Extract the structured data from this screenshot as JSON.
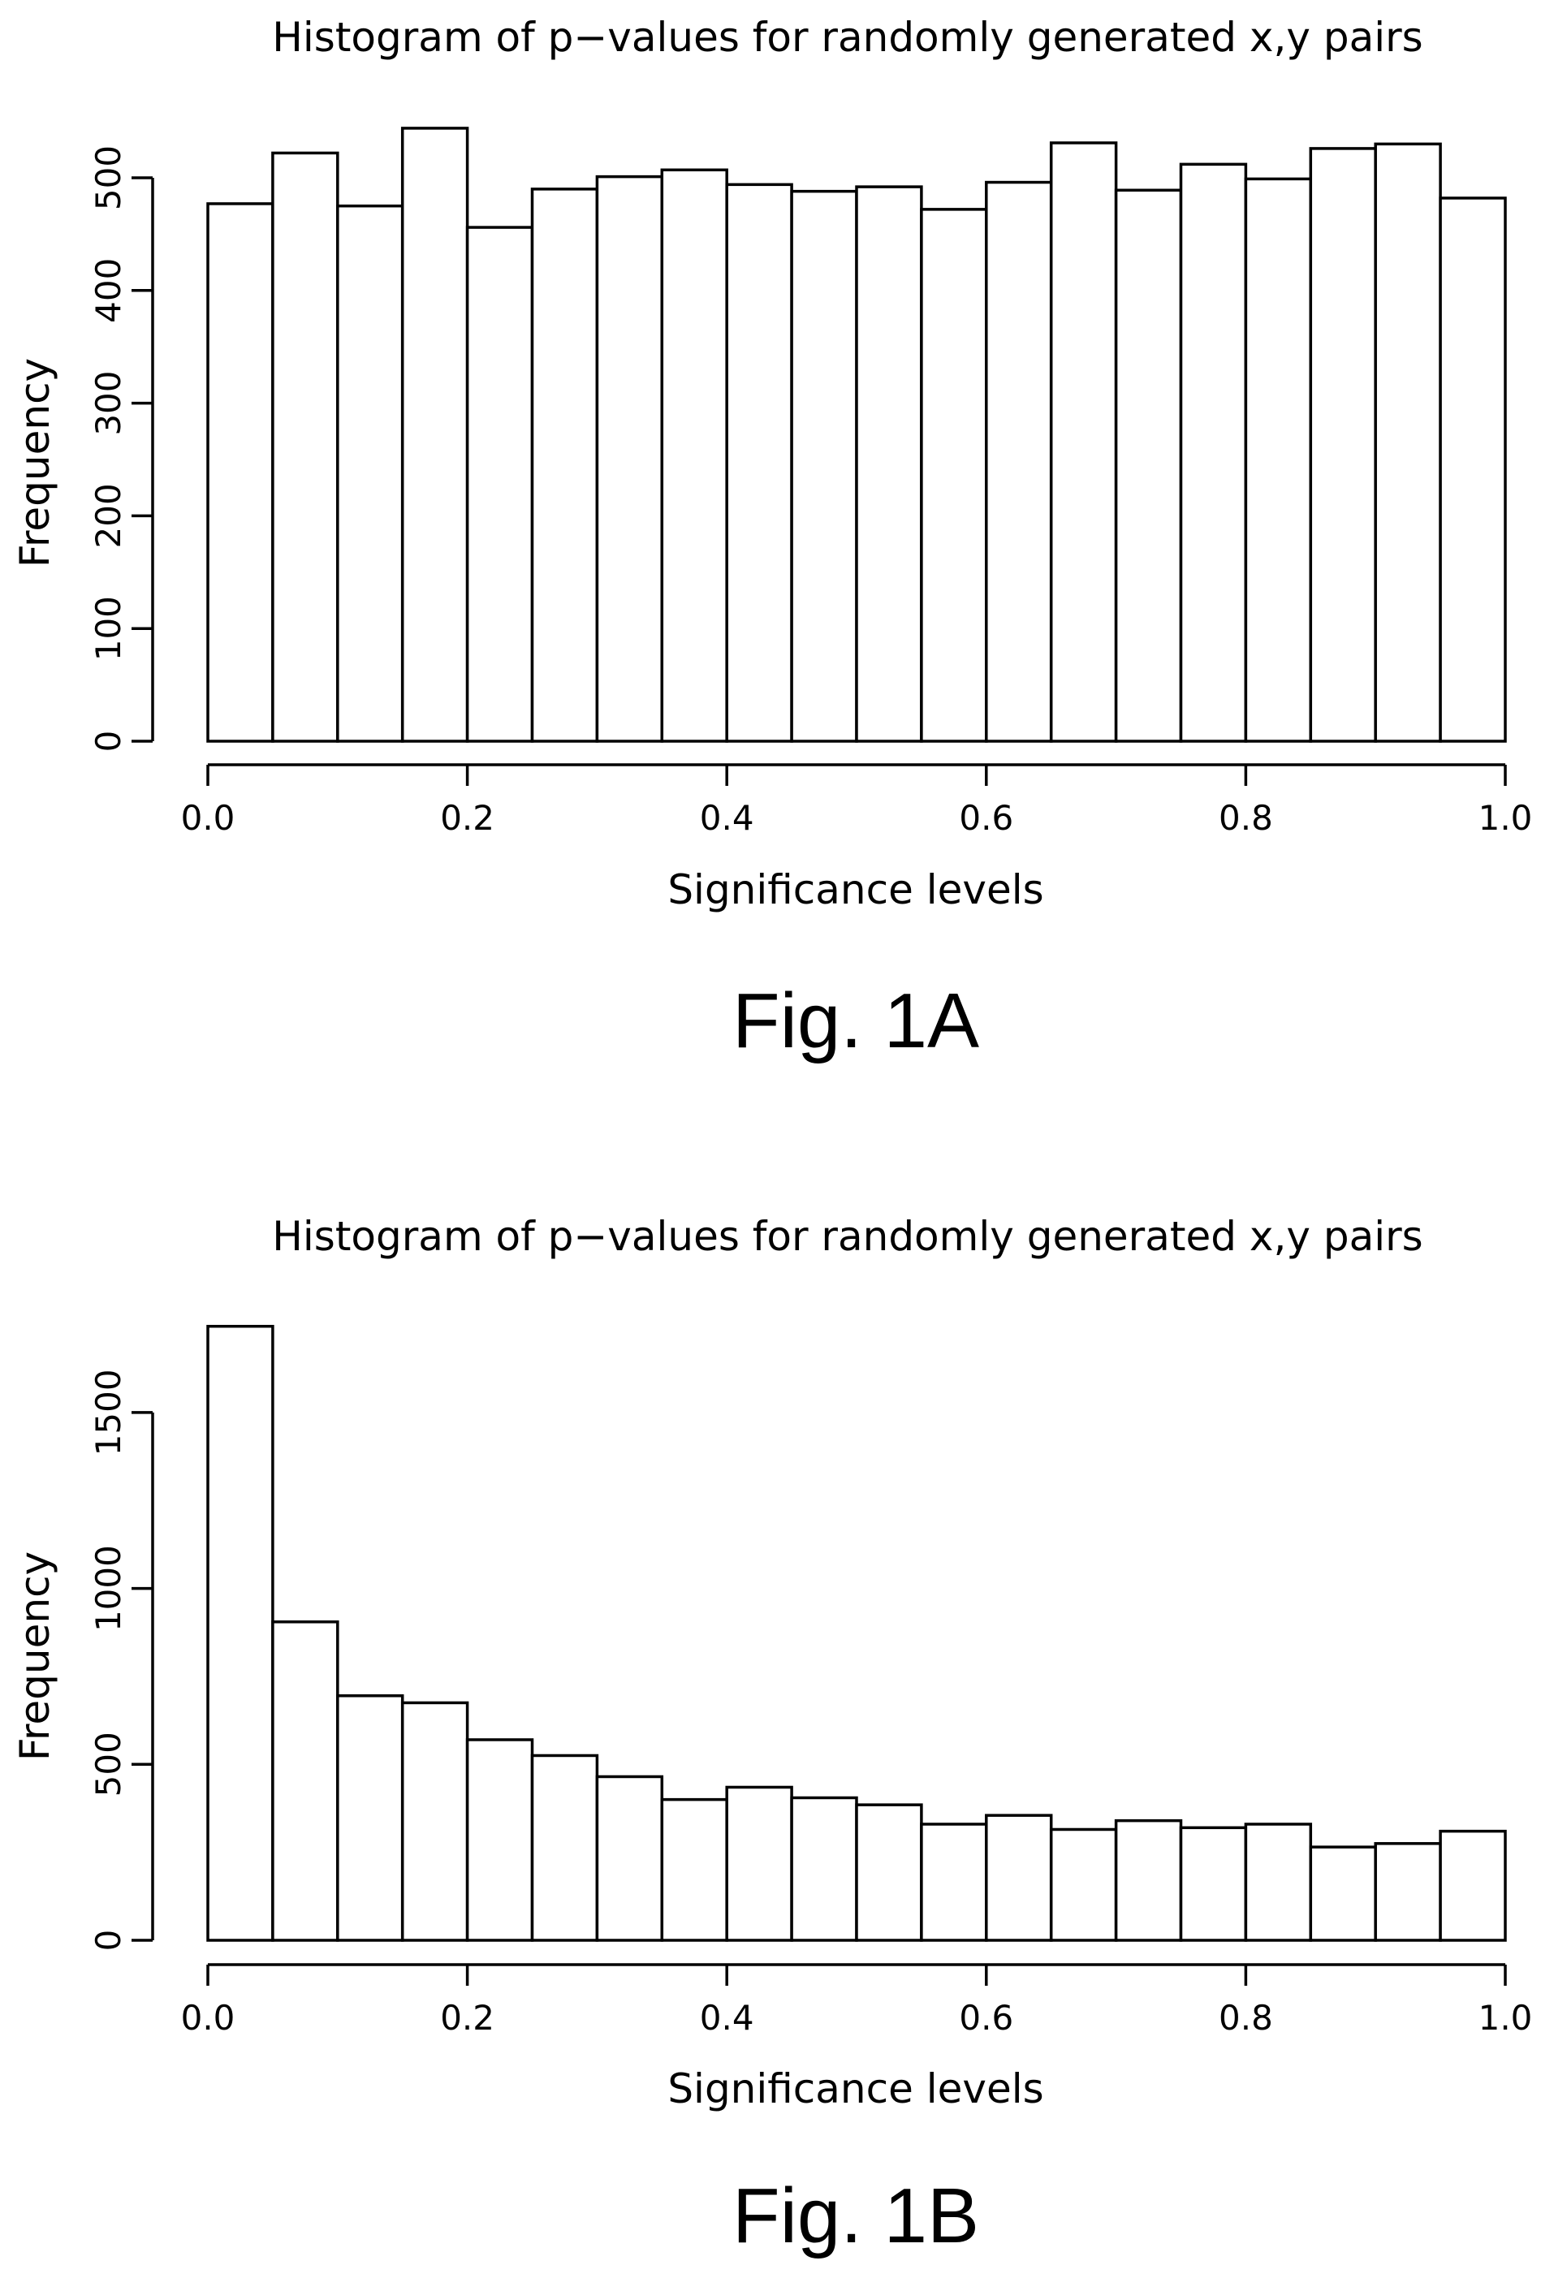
{
  "chart_data": [
    {
      "type": "bar",
      "title": "Histogram of p−values for randomly generated x,y pairs",
      "xlabel": "Significance levels",
      "ylabel": "Frequency",
      "caption": "Fig. 1A",
      "bin_edges": [
        0.0,
        0.05,
        0.1,
        0.15,
        0.2,
        0.25,
        0.3,
        0.35,
        0.4,
        0.45,
        0.5,
        0.55,
        0.6,
        0.65,
        0.7,
        0.75,
        0.8,
        0.85,
        0.9,
        0.95,
        1.0
      ],
      "values": [
        477,
        522,
        475,
        544,
        456,
        490,
        501,
        507,
        494,
        488,
        492,
        472,
        496,
        531,
        489,
        512,
        499,
        526,
        530,
        482
      ],
      "xticks": [
        0.0,
        0.2,
        0.4,
        0.6,
        0.8,
        1.0
      ],
      "xtick_labels": [
        "0.0",
        "0.2",
        "0.4",
        "0.6",
        "0.8",
        "1.0"
      ],
      "yticks": [
        0,
        100,
        200,
        300,
        400,
        500
      ],
      "ytick_labels": [
        "0",
        "100",
        "200",
        "300",
        "400",
        "500"
      ],
      "xlim": [
        0.0,
        1.0
      ],
      "ylim": [
        0,
        550
      ],
      "grid": false
    },
    {
      "type": "bar",
      "title": "Histogram of p−values for randomly generated x,y pairs",
      "xlabel": "Significance levels",
      "ylabel": "Frequency",
      "caption": "Fig. 1B",
      "bin_edges": [
        0.0,
        0.05,
        0.1,
        0.15,
        0.2,
        0.25,
        0.3,
        0.35,
        0.4,
        0.45,
        0.5,
        0.55,
        0.6,
        0.65,
        0.7,
        0.75,
        0.8,
        0.85,
        0.9,
        0.95,
        1.0
      ],
      "values": [
        1745,
        905,
        695,
        675,
        570,
        525,
        465,
        400,
        435,
        405,
        385,
        330,
        355,
        315,
        340,
        320,
        330,
        265,
        275,
        310
      ],
      "xticks": [
        0.0,
        0.2,
        0.4,
        0.6,
        0.8,
        1.0
      ],
      "xtick_labels": [
        "0.0",
        "0.2",
        "0.4",
        "0.6",
        "0.8",
        "1.0"
      ],
      "yticks": [
        0,
        500,
        1000,
        1500
      ],
      "ytick_labels": [
        "0",
        "500",
        "1000",
        "1500"
      ],
      "xlim": [
        0.0,
        1.0
      ],
      "ylim": [
        0,
        1750
      ],
      "grid": false
    }
  ]
}
